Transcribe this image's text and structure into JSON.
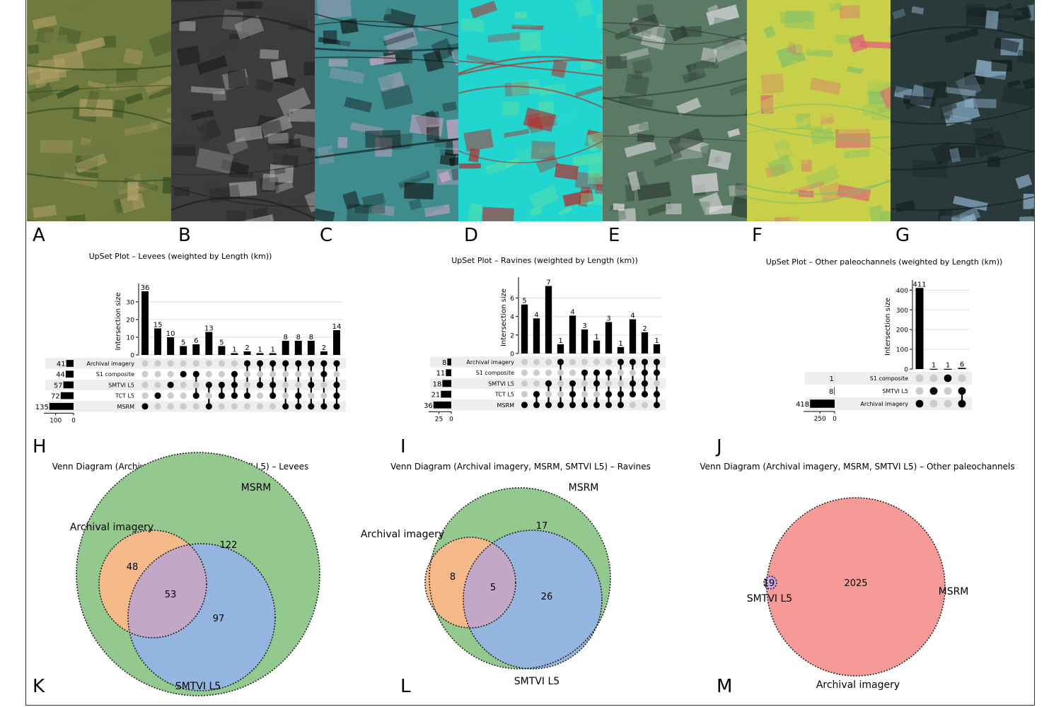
{
  "panel_letters": [
    "A",
    "B",
    "C",
    "D",
    "E",
    "F",
    "G",
    "H",
    "I",
    "J",
    "K",
    "L",
    "M"
  ],
  "imagery_tiles": [
    {
      "id": "A",
      "base": "#6f7a3f",
      "accent": "#2f4a1e",
      "light": "#b7a36a",
      "style": "fields"
    },
    {
      "id": "B",
      "base": "#3c3c3c",
      "accent": "#1a1a1a",
      "light": "#a9a9a9",
      "style": "gray"
    },
    {
      "id": "C",
      "base": "#3f8c8f",
      "accent": "#101010",
      "light": "#d9a9c8",
      "style": "false-color"
    },
    {
      "id": "D",
      "base": "#22d6d0",
      "accent": "#c21e1e",
      "light": "#63e0a0",
      "style": "cyan"
    },
    {
      "id": "E",
      "base": "#5b7a66",
      "accent": "#2a3a30",
      "light": "#e6e0e6",
      "style": "green-gray"
    },
    {
      "id": "F",
      "base": "#c8d04a",
      "accent": "#7cc06a",
      "light": "#e05a7a",
      "style": "yellow"
    },
    {
      "id": "G",
      "base": "#2a3a3a",
      "accent": "#121a1a",
      "light": "#9ac0e0",
      "style": "dark"
    }
  ],
  "chart_data": [
    {
      "type": "bar",
      "subtype": "upset",
      "panel": "H",
      "title": "UpSet Plot – Levees (weighted by Length (km))",
      "ylabel": "Intersection size",
      "ylim": [
        0,
        38
      ],
      "yticks": [
        0,
        10,
        20,
        30
      ],
      "sets": [
        "Archival imagery",
        "S1 composite",
        "SMTVI L5",
        "TCT L5",
        "MSRM"
      ],
      "set_sizes": [
        41,
        44,
        57,
        72,
        135
      ],
      "set_axis_ticks": [
        "100",
        "0"
      ],
      "set_axis_max": 150,
      "values": [
        36,
        15,
        10,
        5,
        6,
        13,
        5,
        1,
        2,
        1,
        1,
        8,
        8,
        8,
        2,
        14
      ],
      "labels": [
        "36",
        "15",
        "10",
        "5",
        "6",
        "13",
        "5",
        "1",
        "2",
        "1",
        "1",
        "8",
        "8",
        "8",
        "2",
        "14"
      ],
      "memberships": [
        [
          4
        ],
        [
          3
        ],
        [
          2
        ],
        [
          1
        ],
        [
          1,
          3
        ],
        [
          2,
          4
        ],
        [
          2,
          3
        ],
        [
          1,
          2,
          3
        ],
        [
          0,
          3
        ],
        [
          0,
          2
        ],
        [
          0,
          2,
          3
        ],
        [
          0,
          4
        ],
        [
          0,
          3,
          4
        ],
        [
          0,
          2,
          4
        ],
        [
          0,
          1,
          4
        ],
        [
          0,
          2,
          3,
          4
        ]
      ]
    },
    {
      "type": "bar",
      "subtype": "upset",
      "panel": "I",
      "title": "UpSet Plot – Ravines (weighted by Length (km))",
      "ylabel": "Intersection size",
      "ylim": [
        0,
        7.8
      ],
      "yticks": [
        0,
        2,
        4,
        6
      ],
      "sets": [
        "Archival imagery",
        "S1 composite",
        "SMTVI L5",
        "TCT L5",
        "MSRM"
      ],
      "set_sizes": [
        8,
        11,
        18,
        21,
        36
      ],
      "set_axis_ticks": [
        "25",
        "0"
      ],
      "set_axis_max": 40,
      "values": [
        5.3,
        3.8,
        7.3,
        1,
        4.1,
        2.6,
        1.4,
        3.4,
        0.7,
        3.7,
        2.3,
        1
      ],
      "labels": [
        "5",
        "4",
        "7",
        "1",
        "4",
        "3",
        "1",
        "3",
        "1",
        "4",
        "2",
        "1"
      ],
      "memberships": [
        [
          4
        ],
        [
          3,
          4
        ],
        [
          2,
          4
        ],
        [
          0,
          4
        ],
        [
          2,
          3,
          4
        ],
        [
          1,
          4
        ],
        [
          1,
          2,
          4
        ],
        [
          1,
          3,
          4
        ],
        [
          0,
          3,
          4
        ],
        [
          0,
          2,
          3
        ],
        [
          0,
          1,
          2,
          3
        ],
        [
          0,
          1,
          3,
          4
        ]
      ]
    },
    {
      "type": "bar",
      "subtype": "upset",
      "panel": "J",
      "title": "UpSet Plot – Other paleochannels (weighted by Length (km))",
      "ylabel": "Intersection size",
      "ylim": [
        0,
        430
      ],
      "yticks": [
        0,
        100,
        200,
        300,
        400
      ],
      "sets": [
        "S1 composite",
        "SMTVI L5",
        "Archival imagery"
      ],
      "set_sizes": [
        1,
        8,
        418
      ],
      "set_axis_ticks": [
        "250",
        "0"
      ],
      "set_axis_max": 480,
      "values": [
        411,
        1,
        1,
        6
      ],
      "labels": [
        "411",
        "1",
        "1",
        "6"
      ],
      "memberships": [
        [
          2
        ],
        [
          1
        ],
        [
          0
        ],
        [
          1,
          2
        ]
      ]
    },
    {
      "type": "venn",
      "panel": "K",
      "title": "Venn Diagram (Archival imagery, MSRM, SMTVI L5) – Levees",
      "sets": [
        "Archival imagery",
        "MSRM",
        "SMTVI L5"
      ],
      "regions": {
        "archival_msrm": "48",
        "msrm_only": "122",
        "all_three": "53",
        "msrm_smtvi": "97"
      }
    },
    {
      "type": "venn",
      "panel": "L",
      "title": "Venn Diagram (Archival imagery, MSRM, SMTVI L5) – Ravines",
      "sets": [
        "Archival imagery",
        "MSRM",
        "SMTVI L5"
      ],
      "regions": {
        "msrm_only": "17",
        "archival_msrm": "8",
        "all_three": "5",
        "msrm_smtvi": "26"
      }
    },
    {
      "type": "venn",
      "panel": "M",
      "title": "Venn Diagram (Archival imagery, MSRM, SMTVI L5) – Other paleochannels",
      "sets": [
        "Archival imagery",
        "MSRM",
        "SMTVI L5"
      ],
      "regions": {
        "smtvi": "19",
        "main": "2025"
      }
    }
  ],
  "colors": {
    "bar": "#000000",
    "dot_on": "#000000",
    "dot_off": "#cccccc",
    "stripe": "#eeeeee",
    "grid": "#dddddd",
    "venn_archival": "#f5b98a",
    "venn_msrm": "#93c88e",
    "venn_smtvi": "#93b5e0",
    "venn_overlap": "#c2a7c6",
    "venn_big": "#f59a96",
    "venn_small": "#c9a6e6"
  }
}
